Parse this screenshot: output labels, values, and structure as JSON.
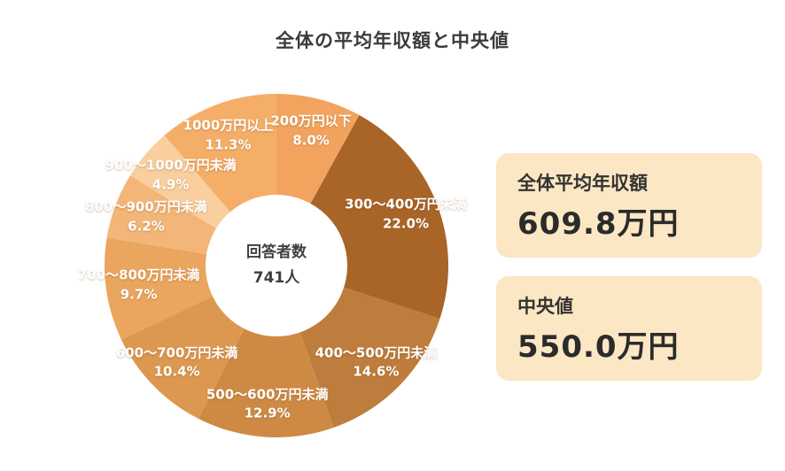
{
  "title": "全体の平均年収額と中央値",
  "chart_data": {
    "type": "pie",
    "variant": "donut",
    "title": "全体の平均年収額と中央値",
    "direction": "clockwise",
    "start_angle_deg": 0,
    "legend": "none",
    "categories": [
      "200万円以下",
      "300〜400万円未満",
      "400〜500万円未満",
      "500〜600万円未満",
      "600〜700万円未満",
      "700〜800万円未満",
      "800〜900万円未満",
      "900〜1000万円未満",
      "1000万円以上"
    ],
    "values": [
      8.0,
      22.0,
      14.6,
      12.9,
      10.4,
      9.7,
      6.2,
      4.9,
      11.3
    ],
    "value_labels": [
      "8.0%",
      "22.0%",
      "14.6%",
      "12.9%",
      "10.4%",
      "9.7%",
      "6.2%",
      "4.9%",
      "11.3%"
    ],
    "colors": [
      "#F2A45F",
      "#A96428",
      "#BE7D3C",
      "#CE8A45",
      "#DC9850",
      "#EAA65E",
      "#F3B678",
      "#F9CFA0",
      "#F5AE68"
    ],
    "label_color": "#FFFFFF",
    "center_label": {
      "line1": "回答者数",
      "line2": "741人"
    }
  },
  "cards": [
    {
      "label": "全体平均年収額",
      "value": "609.8万円"
    },
    {
      "label": "中央値",
      "value": "550.0万円"
    }
  ],
  "colors": {
    "card_bg": "#FBE7C3",
    "text": "#333333"
  }
}
